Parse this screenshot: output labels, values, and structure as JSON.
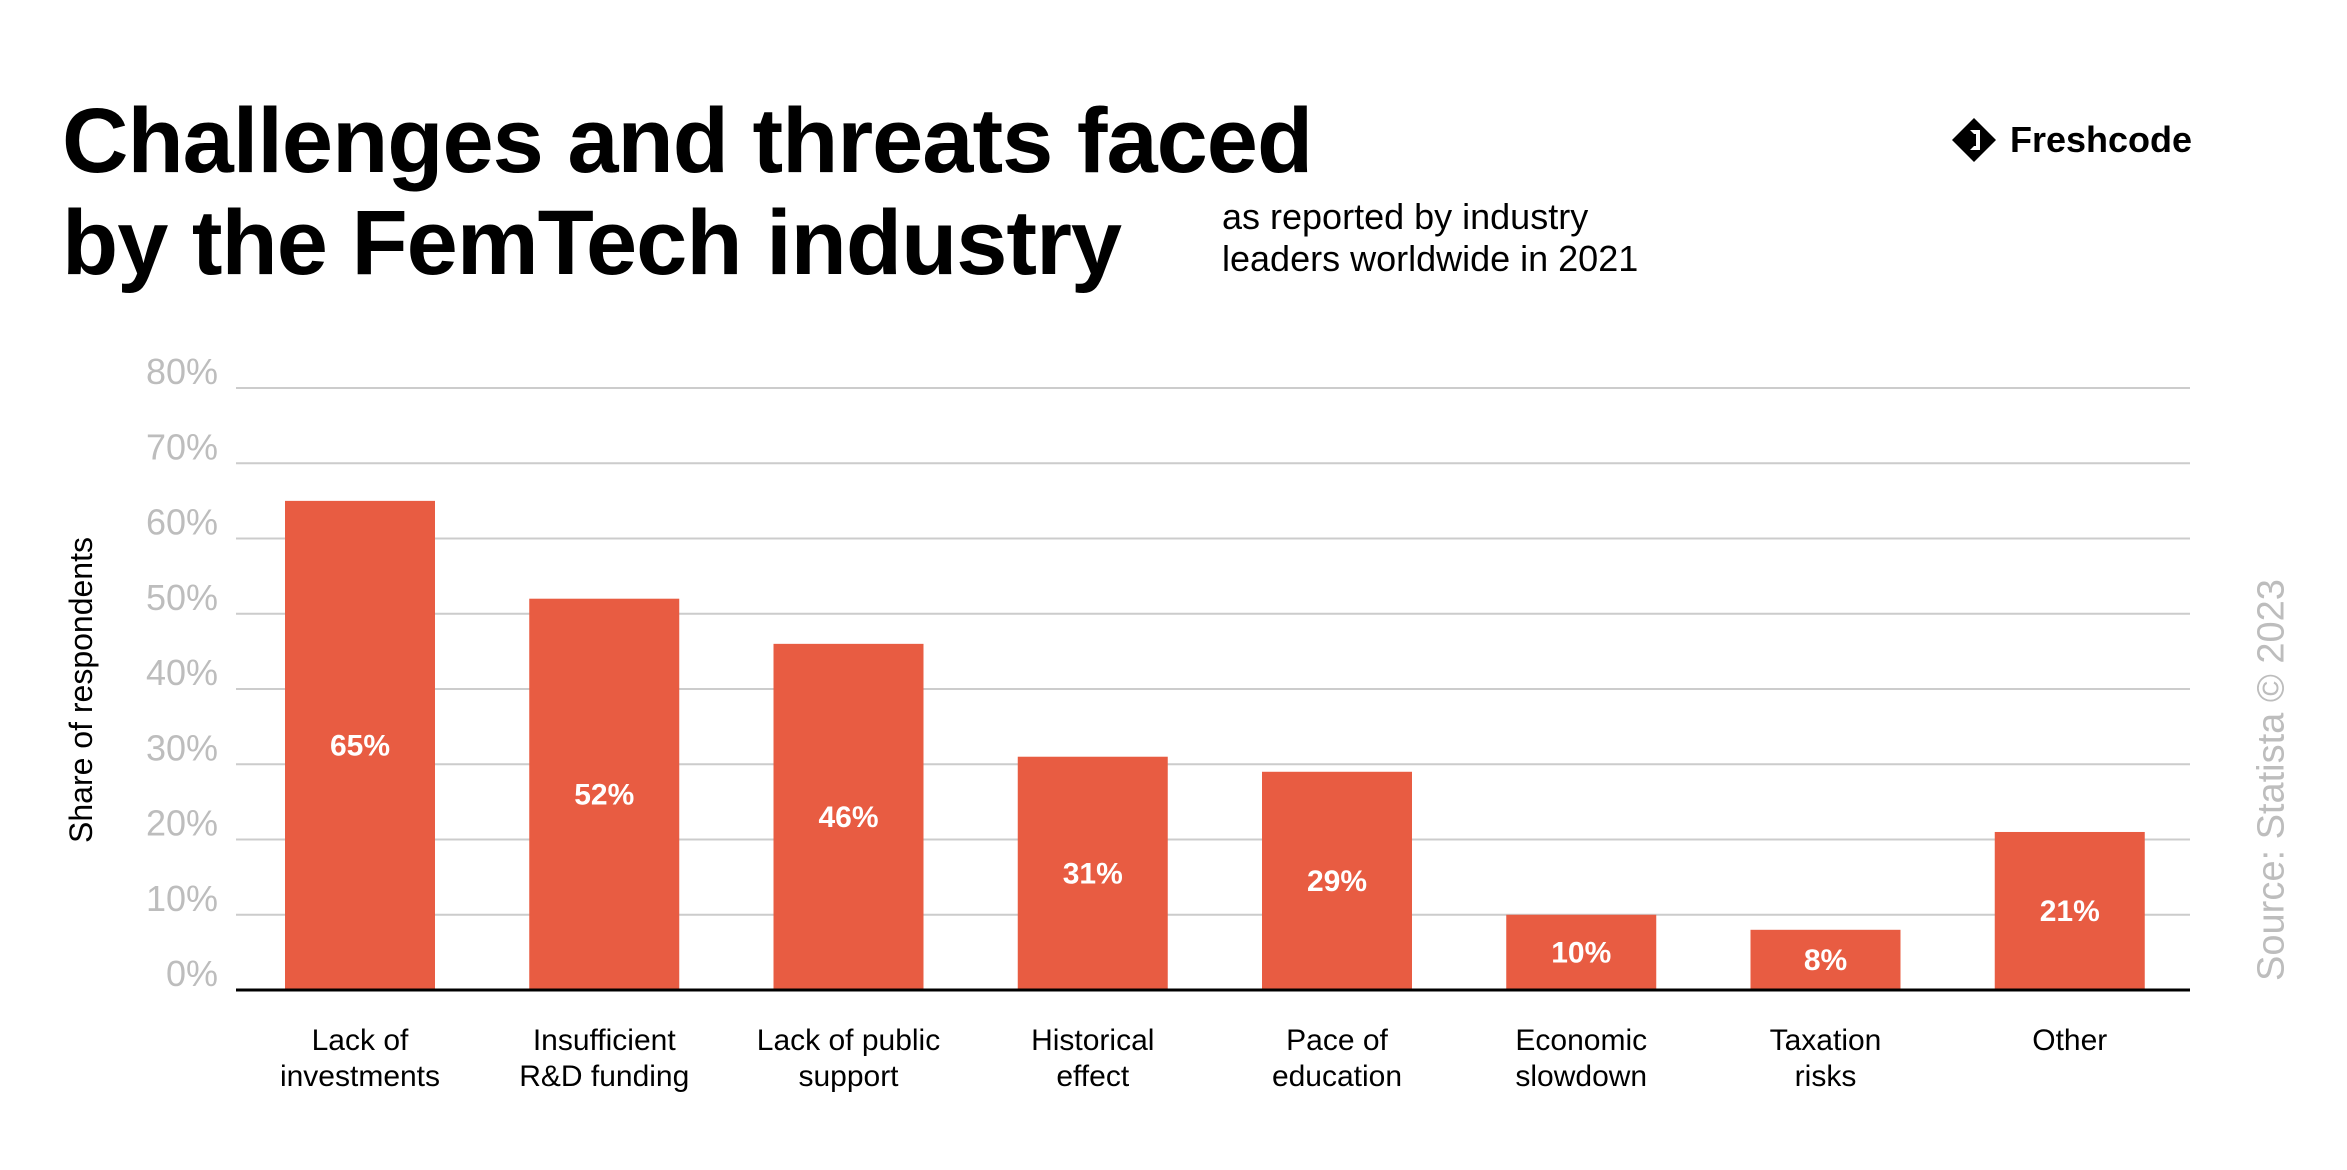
{
  "header": {
    "title_line1": "Challenges and threats faced",
    "title_line2": "by the FemTech industry",
    "subtitle_line1": "as reported by industry",
    "subtitle_line2": "leaders worldwide in 2021",
    "logo_text": "Freshcode"
  },
  "source": "Source: Statista © 2023",
  "colors": {
    "bar": "#E85C42",
    "grid": "#cccccc",
    "tick_label": "#bdbdbd",
    "axis": "#000000"
  },
  "chart_data": {
    "type": "bar",
    "title": "Challenges and threats faced by the FemTech industry",
    "subtitle": "as reported by industry leaders worldwide in 2021",
    "xlabel": "",
    "ylabel": "Share of respondents",
    "ylim": [
      0,
      80
    ],
    "grid": true,
    "yticks": [
      "0%",
      "10%",
      "20%",
      "30%",
      "40%",
      "50%",
      "60%",
      "70%",
      "80%"
    ],
    "categories": [
      [
        "Lack of",
        "investments"
      ],
      [
        "Insufficient",
        "R&D funding"
      ],
      [
        "Lack of public",
        "support"
      ],
      [
        "Historical",
        "effect"
      ],
      [
        "Pace of",
        "education"
      ],
      [
        "Economic",
        "slowdown"
      ],
      [
        "Taxation",
        "risks"
      ],
      [
        "Other"
      ]
    ],
    "values": [
      65,
      52,
      46,
      31,
      29,
      10,
      8,
      21
    ],
    "data_labels": [
      "65%",
      "52%",
      "46%",
      "31%",
      "29%",
      "10%",
      "8%",
      "21%"
    ]
  }
}
